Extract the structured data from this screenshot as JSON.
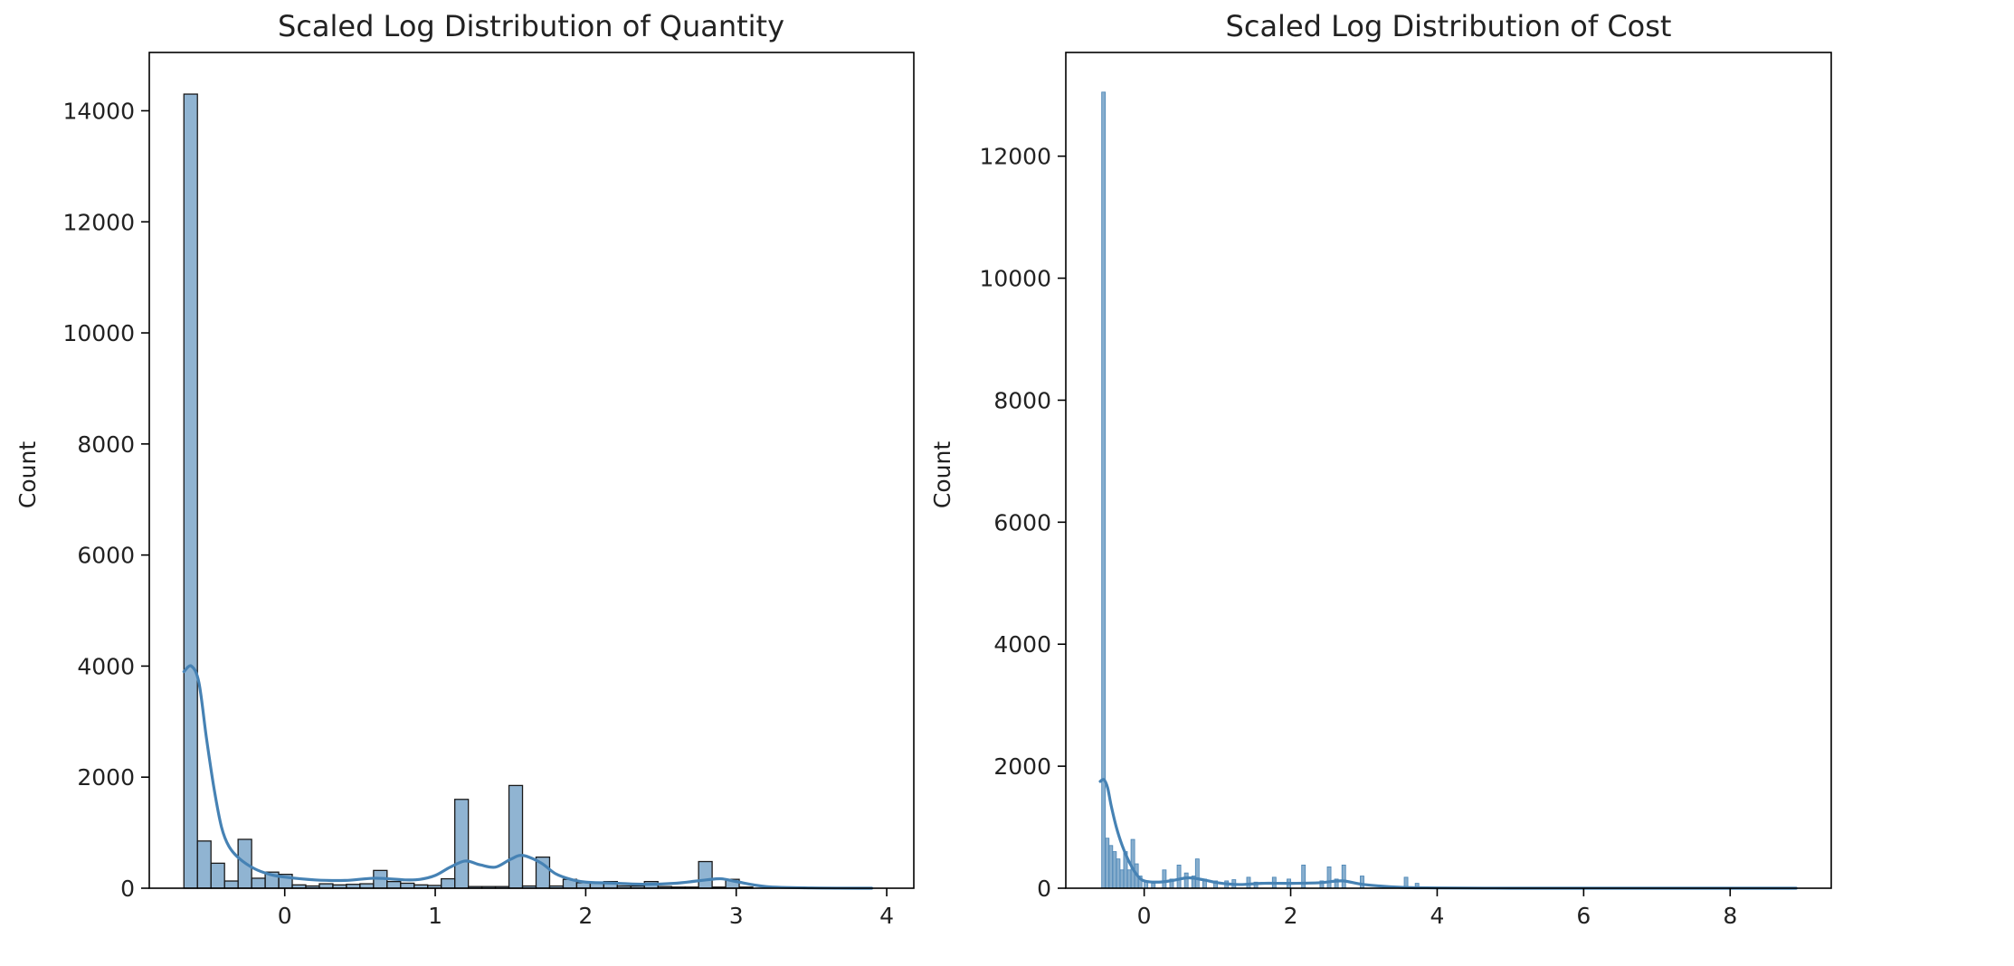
{
  "chart_data": [
    {
      "type": "histogram",
      "title": "Scaled Log Distribution of Quantity",
      "xlabel": "",
      "ylabel": "Count",
      "xlim": [
        -0.9,
        4.18
      ],
      "ylim": [
        0,
        15050
      ],
      "xticks": [
        "0",
        "1",
        "2",
        "3",
        "4"
      ],
      "yticks": [
        "0",
        "2000",
        "4000",
        "6000",
        "8000",
        "10000",
        "12000",
        "14000"
      ],
      "grid": false,
      "bar_color": "#4682b4",
      "bins": [
        {
          "x0": -0.67,
          "x1": -0.58,
          "count": 14300
        },
        {
          "x0": -0.58,
          "x1": -0.49,
          "count": 850
        },
        {
          "x0": -0.49,
          "x1": -0.4,
          "count": 450
        },
        {
          "x0": -0.4,
          "x1": -0.31,
          "count": 130
        },
        {
          "x0": -0.31,
          "x1": -0.22,
          "count": 880
        },
        {
          "x0": -0.22,
          "x1": -0.13,
          "count": 180
        },
        {
          "x0": -0.13,
          "x1": -0.04,
          "count": 290
        },
        {
          "x0": -0.04,
          "x1": 0.05,
          "count": 250
        },
        {
          "x0": 0.05,
          "x1": 0.14,
          "count": 60
        },
        {
          "x0": 0.14,
          "x1": 0.23,
          "count": 40
        },
        {
          "x0": 0.23,
          "x1": 0.32,
          "count": 80
        },
        {
          "x0": 0.32,
          "x1": 0.41,
          "count": 60
        },
        {
          "x0": 0.41,
          "x1": 0.5,
          "count": 70
        },
        {
          "x0": 0.5,
          "x1": 0.59,
          "count": 80
        },
        {
          "x0": 0.59,
          "x1": 0.68,
          "count": 320
        },
        {
          "x0": 0.68,
          "x1": 0.77,
          "count": 120
        },
        {
          "x0": 0.77,
          "x1": 0.86,
          "count": 90
        },
        {
          "x0": 0.86,
          "x1": 0.95,
          "count": 60
        },
        {
          "x0": 0.95,
          "x1": 1.04,
          "count": 50
        },
        {
          "x0": 1.04,
          "x1": 1.13,
          "count": 170
        },
        {
          "x0": 1.13,
          "x1": 1.22,
          "count": 1600
        },
        {
          "x0": 1.22,
          "x1": 1.31,
          "count": 30
        },
        {
          "x0": 1.31,
          "x1": 1.4,
          "count": 30
        },
        {
          "x0": 1.4,
          "x1": 1.49,
          "count": 30
        },
        {
          "x0": 1.49,
          "x1": 1.58,
          "count": 1850
        },
        {
          "x0": 1.58,
          "x1": 1.67,
          "count": 40
        },
        {
          "x0": 1.67,
          "x1": 1.76,
          "count": 560
        },
        {
          "x0": 1.76,
          "x1": 1.85,
          "count": 40
        },
        {
          "x0": 1.85,
          "x1": 1.94,
          "count": 160
        },
        {
          "x0": 1.94,
          "x1": 2.03,
          "count": 100
        },
        {
          "x0": 2.03,
          "x1": 2.12,
          "count": 110
        },
        {
          "x0": 2.12,
          "x1": 2.21,
          "count": 120
        },
        {
          "x0": 2.21,
          "x1": 2.3,
          "count": 40
        },
        {
          "x0": 2.3,
          "x1": 2.39,
          "count": 40
        },
        {
          "x0": 2.39,
          "x1": 2.48,
          "count": 120
        },
        {
          "x0": 2.48,
          "x1": 2.57,
          "count": 30
        },
        {
          "x0": 2.57,
          "x1": 2.66,
          "count": 20
        },
        {
          "x0": 2.66,
          "x1": 2.75,
          "count": 20
        },
        {
          "x0": 2.75,
          "x1": 2.84,
          "count": 480
        },
        {
          "x0": 2.84,
          "x1": 2.93,
          "count": 20
        },
        {
          "x0": 2.93,
          "x1": 3.02,
          "count": 160
        },
        {
          "x0": 3.02,
          "x1": 3.11,
          "count": 20
        }
      ],
      "kde": {
        "x": [
          -0.67,
          -0.62,
          -0.57,
          -0.52,
          -0.47,
          -0.42,
          -0.37,
          -0.3,
          -0.2,
          -0.1,
          0.0,
          0.2,
          0.4,
          0.6,
          0.8,
          0.9,
          1.0,
          1.1,
          1.2,
          1.3,
          1.4,
          1.5,
          1.58,
          1.7,
          1.8,
          1.9,
          2.0,
          2.2,
          2.4,
          2.6,
          2.8,
          2.9,
          3.0,
          3.2,
          3.5,
          3.9
        ],
        "y": [
          3900,
          4000,
          3700,
          2700,
          1800,
          1100,
          750,
          530,
          350,
          250,
          200,
          150,
          140,
          180,
          150,
          160,
          230,
          380,
          490,
          420,
          380,
          520,
          590,
          460,
          260,
          160,
          110,
          90,
          70,
          90,
          150,
          170,
          120,
          30,
          5,
          0
        ]
      }
    },
    {
      "type": "histogram",
      "title": "Scaled Log Distribution of Cost",
      "xlabel": "",
      "ylabel": "Count",
      "xlim": [
        -1.07,
        9.38
      ],
      "ylim": [
        0,
        13700
      ],
      "xticks": [
        "0",
        "2",
        "4",
        "6",
        "8"
      ],
      "yticks": [
        "0",
        "2000",
        "4000",
        "6000",
        "8000",
        "10000",
        "12000"
      ],
      "grid": false,
      "bar_color": "#4682b4",
      "bins": [
        {
          "x0": -0.58,
          "x1": -0.53,
          "count": 13050
        },
        {
          "x0": -0.53,
          "x1": -0.48,
          "count": 820
        },
        {
          "x0": -0.48,
          "x1": -0.43,
          "count": 700
        },
        {
          "x0": -0.43,
          "x1": -0.38,
          "count": 600
        },
        {
          "x0": -0.38,
          "x1": -0.33,
          "count": 480
        },
        {
          "x0": -0.33,
          "x1": -0.28,
          "count": 300
        },
        {
          "x0": -0.28,
          "x1": -0.23,
          "count": 600
        },
        {
          "x0": -0.23,
          "x1": -0.18,
          "count": 300
        },
        {
          "x0": -0.18,
          "x1": -0.13,
          "count": 800
        },
        {
          "x0": -0.13,
          "x1": -0.08,
          "count": 400
        },
        {
          "x0": -0.08,
          "x1": -0.03,
          "count": 200
        },
        {
          "x0": 0.0,
          "x1": 0.05,
          "count": 100
        },
        {
          "x0": 0.1,
          "x1": 0.15,
          "count": 80
        },
        {
          "x0": 0.25,
          "x1": 0.3,
          "count": 300
        },
        {
          "x0": 0.35,
          "x1": 0.4,
          "count": 150
        },
        {
          "x0": 0.45,
          "x1": 0.5,
          "count": 380
        },
        {
          "x0": 0.55,
          "x1": 0.6,
          "count": 250
        },
        {
          "x0": 0.65,
          "x1": 0.7,
          "count": 200
        },
        {
          "x0": 0.7,
          "x1": 0.75,
          "count": 480
        },
        {
          "x0": 0.8,
          "x1": 0.85,
          "count": 150
        },
        {
          "x0": 0.95,
          "x1": 1.0,
          "count": 120
        },
        {
          "x0": 1.1,
          "x1": 1.15,
          "count": 120
        },
        {
          "x0": 1.2,
          "x1": 1.25,
          "count": 140
        },
        {
          "x0": 1.4,
          "x1": 1.45,
          "count": 180
        },
        {
          "x0": 1.5,
          "x1": 1.55,
          "count": 100
        },
        {
          "x0": 1.75,
          "x1": 1.8,
          "count": 180
        },
        {
          "x0": 1.95,
          "x1": 2.0,
          "count": 150
        },
        {
          "x0": 2.15,
          "x1": 2.2,
          "count": 380
        },
        {
          "x0": 2.4,
          "x1": 2.45,
          "count": 120
        },
        {
          "x0": 2.5,
          "x1": 2.55,
          "count": 350
        },
        {
          "x0": 2.6,
          "x1": 2.65,
          "count": 150
        },
        {
          "x0": 2.7,
          "x1": 2.75,
          "count": 380
        },
        {
          "x0": 2.95,
          "x1": 3.0,
          "count": 200
        },
        {
          "x0": 3.55,
          "x1": 3.6,
          "count": 180
        },
        {
          "x0": 3.7,
          "x1": 3.75,
          "count": 80
        }
      ],
      "kde": {
        "x": [
          -0.6,
          -0.55,
          -0.5,
          -0.45,
          -0.38,
          -0.3,
          -0.2,
          -0.1,
          0.0,
          0.2,
          0.4,
          0.6,
          0.8,
          1.0,
          1.3,
          1.6,
          2.0,
          2.4,
          2.7,
          3.0,
          3.5,
          4.0,
          5.0,
          6.0,
          8.9
        ],
        "y": [
          1750,
          1780,
          1650,
          1350,
          1000,
          700,
          420,
          220,
          120,
          100,
          130,
          170,
          140,
          90,
          60,
          80,
          80,
          90,
          120,
          60,
          15,
          5,
          0,
          0,
          0
        ]
      }
    }
  ]
}
